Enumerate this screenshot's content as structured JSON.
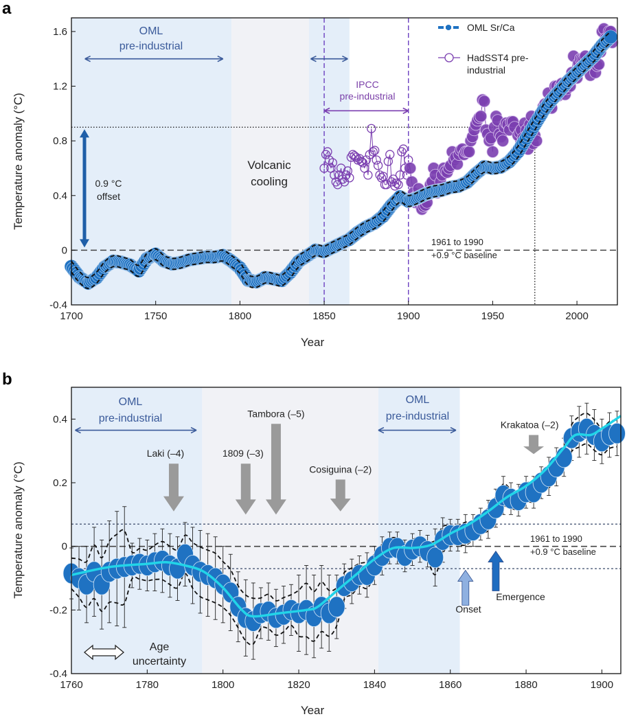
{
  "panels": {
    "a": "a",
    "b": "b"
  },
  "colors": {
    "oml": "#1f72c2",
    "hadsst": "#7b3fb0",
    "smooth": "#22d4e8",
    "shade_blue": "#e4eef9",
    "shade_gray": "#f1f2f6",
    "volcano_arrow": "#9a9a9a",
    "onset_arrow": "#8fb0e0",
    "emergence_arrow": "#1f6cc0",
    "oml_arrow": "#3a5a9a"
  },
  "chart_data": [
    {
      "panel": "a",
      "type": "scatter",
      "xlabel": "Year",
      "ylabel": "Temperature anomaly (°C)",
      "xlim": [
        1700,
        2024
      ],
      "ylim": [
        -0.4,
        1.7
      ],
      "xticks": [
        1700,
        1750,
        1800,
        1850,
        1900,
        1950,
        2000
      ],
      "yticks": [
        -0.4,
        0,
        0.4,
        0.8,
        1.2,
        1.6
      ],
      "ytick_labels": [
        "-0.4",
        "0",
        "0.4",
        "0.8",
        "1.2",
        "1.6"
      ],
      "legend": {
        "placement": "top-right",
        "entries": [
          "OML Sr/Ca",
          "HadSST4 pre-industrial"
        ],
        "hadsst_lines": [
          "HadSST4 pre-",
          "industrial"
        ]
      },
      "series": [
        {
          "name": "OML Sr/Ca",
          "x": [
            1700,
            1705,
            1710,
            1715,
            1720,
            1725,
            1730,
            1735,
            1740,
            1745,
            1750,
            1755,
            1760,
            1765,
            1770,
            1775,
            1780,
            1785,
            1790,
            1795,
            1800,
            1805,
            1810,
            1815,
            1820,
            1825,
            1830,
            1835,
            1840,
            1845,
            1850,
            1855,
            1860,
            1865,
            1870,
            1875,
            1880,
            1885,
            1890,
            1895,
            1900,
            1905,
            1910,
            1915,
            1920,
            1925,
            1930,
            1935,
            1940,
            1945,
            1950,
            1955,
            1960,
            1965,
            1970,
            1975,
            1980,
            1985,
            1990,
            1995,
            2000,
            2005,
            2010,
            2015,
            2020
          ],
          "y": [
            -0.12,
            -0.2,
            -0.24,
            -0.2,
            -0.12,
            -0.08,
            -0.09,
            -0.11,
            -0.15,
            -0.06,
            -0.03,
            -0.08,
            -0.1,
            -0.09,
            -0.07,
            -0.06,
            -0.05,
            -0.05,
            -0.04,
            -0.08,
            -0.13,
            -0.22,
            -0.23,
            -0.2,
            -0.21,
            -0.22,
            -0.16,
            -0.08,
            -0.04,
            0.0,
            -0.01,
            0.02,
            0.05,
            0.08,
            0.13,
            0.17,
            0.2,
            0.25,
            0.33,
            0.39,
            0.36,
            0.38,
            0.41,
            0.43,
            0.44,
            0.46,
            0.47,
            0.5,
            0.56,
            0.61,
            0.6,
            0.61,
            0.65,
            0.72,
            0.82,
            0.92,
            1.02,
            1.1,
            1.17,
            1.24,
            1.3,
            1.36,
            1.42,
            1.5,
            1.56
          ],
          "uncertainty": 0.04
        },
        {
          "name": "HadSST4 pre-industrial",
          "x": [
            1850,
            1851,
            1852,
            1853,
            1854,
            1855,
            1856,
            1857,
            1858,
            1859,
            1860,
            1861,
            1862,
            1863,
            1864,
            1865,
            1866,
            1867,
            1868,
            1869,
            1870,
            1871,
            1872,
            1873,
            1874,
            1875,
            1876,
            1877,
            1878,
            1879,
            1880,
            1881,
            1882,
            1883,
            1884,
            1885,
            1886,
            1887,
            1888,
            1889,
            1890,
            1891,
            1892,
            1893,
            1894,
            1895,
            1896,
            1897,
            1898,
            1899,
            1900,
            1901,
            1902,
            1903,
            1904,
            1905,
            1906,
            1907,
            1908,
            1909,
            1910,
            1911,
            1912,
            1913,
            1914,
            1915,
            1916,
            1917,
            1918,
            1919,
            1920,
            1921,
            1922,
            1923,
            1924,
            1925,
            1926,
            1927,
            1928,
            1929,
            1930,
            1931,
            1932,
            1933,
            1934,
            1935,
            1936,
            1937,
            1938,
            1939,
            1940,
            1941,
            1942,
            1943,
            1944,
            1945,
            1946,
            1947,
            1948,
            1949,
            1950,
            1951,
            1952,
            1953,
            1954,
            1955,
            1956,
            1957,
            1958,
            1959,
            1960,
            1961,
            1962,
            1963,
            1964,
            1965,
            1966,
            1967,
            1968,
            1969,
            1970,
            1971,
            1972,
            1973,
            1974,
            1975,
            1976,
            1977,
            1978,
            1979,
            1980,
            1981,
            1982,
            1983,
            1984,
            1985,
            1986,
            1987,
            1988,
            1989,
            1990,
            1991,
            1992,
            1993,
            1994,
            1995,
            1996,
            1997,
            1998,
            1999,
            2000,
            2001,
            2002,
            2003,
            2004,
            2005,
            2006,
            2007,
            2008,
            2009,
            2010,
            2011,
            2012,
            2013,
            2014,
            2015,
            2016,
            2017,
            2018,
            2019,
            2020,
            2021
          ],
          "y": [
            0.6,
            0.7,
            0.72,
            0.66,
            0.6,
            0.64,
            0.55,
            0.5,
            0.48,
            0.55,
            0.6,
            0.52,
            0.5,
            0.55,
            0.58,
            0.53,
            0.68,
            0.7,
            0.69,
            0.68,
            0.66,
            0.67,
            0.65,
            0.64,
            0.6,
            0.66,
            0.55,
            0.7,
            0.89,
            0.72,
            0.73,
            0.66,
            0.62,
            0.55,
            0.53,
            0.54,
            0.48,
            0.48,
            0.65,
            0.7,
            0.5,
            0.52,
            0.47,
            0.49,
            0.48,
            0.55,
            0.72,
            0.74,
            0.6,
            0.55,
            0.66,
            0.6,
            0.5,
            0.42,
            0.35,
            0.4,
            0.45,
            0.33,
            0.3,
            0.32,
            0.33,
            0.35,
            0.43,
            0.48,
            0.5,
            0.6,
            0.55,
            0.42,
            0.45,
            0.5,
            0.55,
            0.6,
            0.58,
            0.57,
            0.6,
            0.62,
            0.72,
            0.66,
            0.68,
            0.63,
            0.7,
            0.73,
            0.74,
            0.7,
            0.72,
            0.72,
            0.72,
            0.8,
            0.83,
            0.88,
            0.92,
            0.95,
            0.97,
            0.98,
            1.1,
            1.09,
            0.88,
            0.85,
            0.8,
            0.82,
            0.72,
            0.9,
            0.98,
            0.95,
            0.85,
            0.83,
            0.8,
            0.9,
            0.93,
            0.92,
            0.88,
            0.94,
            0.94,
            0.9,
            0.72,
            0.84,
            0.86,
            0.88,
            0.82,
            0.93,
            0.88,
            0.74,
            0.92,
            0.98,
            0.78,
            0.84,
            0.8,
            0.97,
            0.97,
            1.0,
            1.05,
            1.07,
            1.06,
            1.15,
            1.05,
            1.04,
            1.12,
            1.2,
            1.2,
            1.13,
            1.2,
            1.22,
            1.16,
            1.14,
            1.18,
            1.23,
            1.2,
            1.3,
            1.42,
            1.27,
            1.26,
            1.37,
            1.4,
            1.4,
            1.4,
            1.42,
            1.38,
            1.34,
            1.28,
            1.38,
            1.42,
            1.3,
            1.35,
            1.36,
            1.45,
            1.6,
            1.62,
            1.55,
            1.52,
            1.6,
            1.6,
            1.52
          ],
          "open_until": 1900
        }
      ],
      "reference_lines": {
        "baseline": 0,
        "offset_level": 0.9,
        "offset_year": 1975,
        "ipcc_bounds": [
          1850,
          1900
        ]
      },
      "shaded_periods": [
        {
          "kind": "oml-pre-industrial",
          "from": 1700,
          "to": 1795
        },
        {
          "kind": "volcanic-cooling",
          "from": 1795,
          "to": 1841
        },
        {
          "kind": "oml-pre-industrial",
          "from": 1841,
          "to": 1865
        }
      ],
      "annotations": {
        "oml_pre_industrial": [
          "OML",
          "pre-industrial"
        ],
        "ipcc_pre_industrial": [
          "IPCC",
          "pre-industrial"
        ],
        "volcanic_cooling": [
          "Volcanic",
          "cooling"
        ],
        "offset": [
          "0.9 °C",
          "offset"
        ],
        "baseline": [
          "1961 to 1990",
          "+0.9 °C baseline"
        ]
      }
    },
    {
      "panel": "b",
      "type": "scatter",
      "xlabel": "Year",
      "ylabel": "Temperature anomaly (°C)",
      "xlim": [
        1760,
        1905
      ],
      "ylim": [
        -0.4,
        0.5
      ],
      "xticks": [
        1760,
        1780,
        1800,
        1820,
        1840,
        1860,
        1880,
        1900
      ],
      "yticks": [
        -0.4,
        -0.2,
        0,
        0.2,
        0.4
      ],
      "ytick_labels": [
        "-0.4",
        "-0.2",
        "0",
        "0.2",
        "0.4"
      ],
      "series": [
        {
          "name": "OML Sr/Ca",
          "x": [
            1760,
            1762,
            1764,
            1766,
            1768,
            1770,
            1772,
            1774,
            1776,
            1778,
            1780,
            1782,
            1784,
            1786,
            1788,
            1790,
            1792,
            1794,
            1796,
            1798,
            1800,
            1802,
            1804,
            1806,
            1808,
            1810,
            1812,
            1814,
            1816,
            1818,
            1820,
            1822,
            1824,
            1826,
            1828,
            1830,
            1832,
            1834,
            1836,
            1838,
            1840,
            1842,
            1844,
            1846,
            1848,
            1850,
            1852,
            1854,
            1856,
            1858,
            1860,
            1862,
            1864,
            1866,
            1868,
            1870,
            1872,
            1874,
            1876,
            1878,
            1880,
            1882,
            1884,
            1886,
            1888,
            1890,
            1892,
            1894,
            1896,
            1898,
            1900,
            1902,
            1904
          ],
          "y": [
            -0.085,
            -0.1,
            -0.12,
            -0.08,
            -0.12,
            -0.08,
            -0.07,
            -0.065,
            -0.06,
            -0.055,
            -0.06,
            -0.05,
            -0.045,
            -0.06,
            -0.07,
            -0.025,
            -0.06,
            -0.08,
            -0.09,
            -0.1,
            -0.12,
            -0.145,
            -0.19,
            -0.225,
            -0.235,
            -0.21,
            -0.205,
            -0.225,
            -0.215,
            -0.2,
            -0.21,
            -0.2,
            -0.22,
            -0.19,
            -0.21,
            -0.19,
            -0.125,
            -0.11,
            -0.09,
            -0.09,
            -0.06,
            -0.03,
            -0.005,
            -0.005,
            -0.03,
            -0.01,
            0.0,
            -0.015,
            -0.035,
            0.02,
            0.035,
            0.035,
            0.04,
            0.05,
            0.07,
            0.085,
            0.12,
            0.16,
            0.15,
            0.145,
            0.17,
            0.17,
            0.2,
            0.22,
            0.25,
            0.28,
            0.34,
            0.36,
            0.37,
            0.35,
            0.33,
            0.35,
            0.355
          ],
          "error": [
            0.08,
            0.1,
            0.12,
            0.14,
            0.14,
            0.16,
            0.18,
            0.19,
            0.07,
            0.08,
            0.08,
            0.09,
            0.1,
            0.1,
            0.1,
            0.1,
            0.12,
            0.13,
            0.13,
            0.13,
            0.12,
            0.12,
            0.11,
            0.12,
            0.12,
            0.08,
            0.09,
            0.09,
            0.09,
            0.08,
            0.12,
            0.14,
            0.13,
            0.13,
            0.12,
            0.1,
            0.07,
            0.07,
            0.06,
            0.07,
            0.06,
            0.06,
            0.05,
            0.05,
            0.05,
            0.05,
            0.05,
            0.05,
            0.09,
            0.07,
            0.05,
            0.05,
            0.06,
            0.05,
            0.05,
            0.06,
            0.06,
            0.06,
            0.05,
            0.05,
            0.05,
            0.05,
            0.05,
            0.06,
            0.06,
            0.06,
            0.07,
            0.08,
            0.08,
            0.08,
            0.07,
            0.07,
            0.07
          ]
        },
        {
          "name": "smoothed",
          "x": [
            1760,
            1770,
            1780,
            1785,
            1790,
            1795,
            1800,
            1805,
            1808,
            1815,
            1822,
            1825,
            1830,
            1835,
            1840,
            1845,
            1850,
            1855,
            1860,
            1865,
            1870,
            1875,
            1880,
            1885,
            1890,
            1893,
            1897,
            1900,
            1905
          ],
          "y": [
            -0.09,
            -0.065,
            -0.055,
            -0.05,
            -0.06,
            -0.08,
            -0.13,
            -0.2,
            -0.22,
            -0.21,
            -0.2,
            -0.19,
            -0.14,
            -0.09,
            -0.04,
            -0.005,
            -0.005,
            0.005,
            0.04,
            0.07,
            0.11,
            0.155,
            0.19,
            0.24,
            0.31,
            0.35,
            0.35,
            0.37,
            0.41
          ]
        }
      ],
      "reference_lines": {
        "baseline": 0,
        "preindustrial_range": [
          -0.07,
          0.07
        ]
      },
      "shaded_periods": [
        {
          "kind": "oml-pre-industrial",
          "from": 1760,
          "to": 1794.5
        },
        {
          "kind": "volcanic-cooling",
          "from": 1794.5,
          "to": 1841
        },
        {
          "kind": "oml-pre-industrial",
          "from": 1841,
          "to": 1862.5
        }
      ],
      "volcanoes": [
        {
          "label": "Laki (–4)",
          "year": 1787,
          "top": 0.26,
          "tip": 0.11
        },
        {
          "label": "1809 (–3)",
          "year": 1806,
          "top": 0.26,
          "tip": 0.1
        },
        {
          "label": "Tambora (–5)",
          "year": 1814,
          "top": 0.385,
          "tip": 0.1
        },
        {
          "label": "Cosiguina (–2)",
          "year": 1831,
          "top": 0.21,
          "tip": 0.11
        },
        {
          "label": "Krakatoa (–2)",
          "year": 1882,
          "top": 0.35,
          "tip": 0.29
        }
      ],
      "markers": {
        "onset": {
          "label": "Onset",
          "year": 1864
        },
        "emergence": {
          "label": "Emergence",
          "year": 1872
        }
      },
      "annotations": {
        "oml_pre_industrial": [
          "OML",
          "pre-industrial"
        ],
        "baseline": [
          "1961 to 1990",
          "+0.9 °C baseline"
        ],
        "age_uncertainty": [
          "Age",
          "uncertainty"
        ]
      }
    }
  ]
}
